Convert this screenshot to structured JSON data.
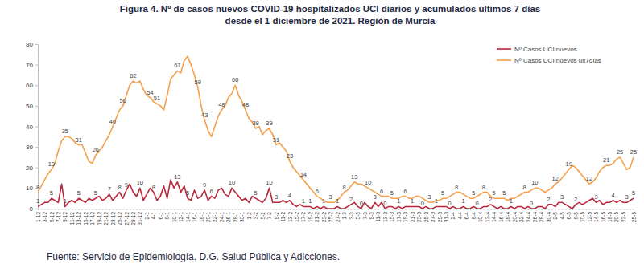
{
  "chart_data": {
    "type": "line",
    "title": [
      "Figura 4. Nº de casos nuevos COVID-19 hospitalizados UCI diarios y acumulados últimos 7 días",
      "desde el 1 diciembre de 2021. Región de Murcia"
    ],
    "source": "Fuente: Servicio de Epidemiología. D.G. Salud Pública y Adicciones.",
    "categories": [
      "1-12",
      null,
      "3-12",
      null,
      "5-12",
      null,
      "7-12",
      null,
      "9-12",
      null,
      "11-12",
      null,
      "13-12",
      null,
      "15-12",
      null,
      "17-12",
      null,
      "19-12",
      null,
      "21-12",
      null,
      "23-12",
      null,
      "25-12",
      null,
      "27-12",
      null,
      "29-12",
      null,
      "31-12",
      null,
      "2-1",
      null,
      "4-1",
      null,
      "6-1",
      null,
      "8-1",
      null,
      "10-1",
      null,
      "12-1",
      null,
      "14-1",
      null,
      "16-1",
      null,
      "18-1",
      null,
      "20-1",
      null,
      "22-1",
      null,
      "24-1",
      null,
      "26-1",
      null,
      "28-1",
      null,
      "30-1",
      null,
      "1-2",
      null,
      "3-2",
      null,
      "5-2",
      null,
      "7-2",
      null,
      "9-2",
      null,
      "11-2",
      null,
      "13-2",
      null,
      "15-2",
      null,
      "17-2",
      null,
      "19-2",
      null,
      "21-2",
      null,
      "23-2",
      null,
      "25-2",
      null,
      "27-2",
      null,
      "1-3",
      null,
      "3-3",
      null,
      "5-3",
      null,
      "7-3",
      null,
      "9-3",
      null,
      "11-3",
      null,
      "13-3",
      null,
      "15-3",
      null,
      "17-3",
      null,
      "19-3",
      null,
      "21-3",
      null,
      "23-3",
      null,
      "25-3",
      null,
      "27-3",
      null,
      "29-3",
      null,
      "31-3",
      null,
      "2-4",
      null,
      "4-4",
      null,
      "6-4",
      null,
      "8-4",
      null,
      "10-4",
      null,
      "12-4",
      null,
      "14-4",
      null,
      "16-4",
      null,
      "18-4",
      null,
      "20-4",
      null,
      "22-4",
      null,
      "24-4",
      null,
      "26-4",
      null,
      "28-4",
      null,
      "30-4",
      null,
      "2-5",
      null,
      "4-5",
      null,
      "6-5",
      null,
      "8-5",
      null,
      "10-5",
      null,
      "12-5",
      null,
      "14-5",
      null,
      "16-5",
      null,
      "18-5",
      null,
      "20-5",
      null,
      "22-5",
      null,
      null,
      "25-5"
    ],
    "series": [
      {
        "name": "Nº Casos UCI nuevos",
        "color": "#b9273a",
        "values": [
          1,
          2,
          3,
          3,
          5,
          4,
          3,
          12,
          1,
          3,
          4,
          3,
          5,
          4,
          3,
          5,
          4,
          5,
          6,
          4,
          5,
          7,
          4,
          6,
          8,
          5,
          9,
          12,
          8,
          6,
          10,
          4,
          7,
          10,
          8,
          4,
          6,
          11,
          5,
          14,
          10,
          13,
          8,
          11,
          5,
          4,
          9,
          5,
          6,
          9,
          4,
          6,
          5,
          9,
          10,
          7,
          6,
          10,
          8,
          6,
          4,
          5,
          3,
          6,
          5,
          4,
          3,
          5,
          10,
          3,
          3,
          3,
          4,
          3,
          4,
          2,
          1,
          2,
          1,
          1,
          1,
          0,
          1,
          0,
          1,
          0,
          0,
          0,
          1,
          0,
          0,
          1,
          2,
          3,
          1,
          0,
          3,
          1,
          0,
          3,
          1,
          3,
          0,
          1,
          1,
          0,
          1,
          0,
          1,
          1,
          1,
          1,
          1,
          0,
          1,
          0,
          0,
          1,
          1,
          1,
          1,
          0,
          1,
          0,
          0,
          1,
          0,
          0,
          1,
          0,
          0,
          1,
          1,
          2,
          1,
          0,
          1,
          0,
          0,
          1,
          0,
          1,
          1,
          0,
          1,
          0,
          0,
          1,
          1,
          0,
          2,
          2,
          1,
          3,
          3,
          2,
          1,
          0,
          2,
          3,
          2,
          3,
          4,
          5,
          3,
          4,
          2,
          3,
          3,
          4,
          3,
          4,
          3,
          3,
          4,
          5
        ],
        "value_labels": [
          "1",
          null,
          null,
          null,
          "5",
          null,
          null,
          null,
          "1",
          null,
          null,
          null,
          "5",
          null,
          null,
          null,
          null,
          "5",
          null,
          null,
          null,
          "7",
          null,
          null,
          "8",
          null,
          "9",
          null,
          null,
          null,
          "10",
          null,
          null,
          null,
          "8",
          null,
          null,
          null,
          null,
          null,
          null,
          "13",
          null,
          null,
          "5",
          null,
          null,
          null,
          null,
          "9",
          null,
          "6",
          null,
          null,
          null,
          null,
          null,
          "10",
          null,
          null,
          null,
          null,
          null,
          null,
          "5",
          null,
          null,
          null,
          "10",
          null,
          "3",
          null,
          null,
          null,
          "4",
          null,
          null,
          null,
          "1",
          null,
          "1",
          null,
          null,
          null,
          "1",
          null,
          null,
          null,
          "1",
          null,
          null,
          null,
          "2",
          null,
          null,
          "0",
          null,
          null,
          null,
          "3",
          null,
          null,
          "0",
          null,
          null,
          null,
          "1",
          null,
          null,
          null,
          "1",
          null,
          null,
          "0",
          null,
          null,
          null,
          "1",
          null,
          null,
          null,
          "0",
          null,
          null,
          null,
          "1",
          null,
          null,
          null,
          "0",
          null,
          null,
          null,
          "2",
          null,
          null,
          null,
          null,
          null,
          "1",
          null,
          null,
          null,
          null,
          null,
          "0",
          null,
          null,
          null,
          null,
          "2",
          null,
          null,
          null,
          "3",
          null,
          null,
          null,
          "2",
          null,
          null,
          null,
          null,
          null,
          "3",
          null,
          null,
          null,
          null,
          "4",
          null,
          null,
          null,
          "3",
          null,
          "5"
        ]
      },
      {
        "name": "Nº Casos UCI nuevos ult7días",
        "color": "#f5a04a",
        "values": [
          8,
          11,
          14,
          17,
          19,
          22,
          28,
          33,
          35,
          35,
          34,
          32,
          31,
          31,
          27,
          23,
          22,
          26,
          28,
          30,
          33,
          36,
          40,
          44,
          48,
          50,
          55,
          60,
          62,
          61,
          62,
          58,
          55,
          54,
          52,
          51,
          50,
          48,
          55,
          63,
          65,
          67,
          66,
          72,
          74,
          70,
          65,
          59,
          50,
          43,
          38,
          35,
          40,
          45,
          48,
          50,
          54,
          56,
          60,
          55,
          52,
          48,
          44,
          42,
          39,
          40,
          36,
          38,
          39,
          36,
          31,
          32,
          30,
          28,
          23,
          20,
          18,
          16,
          14,
          12,
          10,
          8,
          6,
          5,
          4,
          3,
          3,
          3,
          4,
          6,
          8,
          9,
          11,
          13,
          12,
          12,
          11,
          10,
          9,
          8,
          7,
          6,
          6,
          6,
          5,
          5,
          5,
          6,
          6,
          5,
          5,
          6,
          6,
          5,
          4,
          3,
          3,
          4,
          4,
          5,
          5,
          6,
          7,
          8,
          8,
          7,
          6,
          5,
          5,
          6,
          7,
          8,
          8,
          6,
          5,
          5,
          5,
          5,
          4,
          5,
          5,
          6,
          7,
          8,
          8,
          9,
          10,
          10,
          9,
          8,
          9,
          10,
          12,
          13,
          15,
          17,
          19,
          21,
          20,
          18,
          16,
          14,
          12,
          13,
          15,
          18,
          20,
          21,
          21,
          22,
          24,
          25,
          22,
          19,
          20,
          25
        ],
        "value_labels": [
          "8",
          null,
          null,
          null,
          "19",
          null,
          null,
          null,
          "35",
          null,
          null,
          null,
          "31",
          null,
          null,
          null,
          null,
          "26",
          null,
          null,
          null,
          null,
          "40",
          null,
          null,
          "50",
          null,
          null,
          "62",
          null,
          null,
          null,
          null,
          "54",
          null,
          "51",
          null,
          null,
          null,
          null,
          null,
          "67",
          null,
          null,
          null,
          null,
          null,
          "59",
          null,
          "43",
          null,
          null,
          null,
          null,
          "48",
          null,
          null,
          null,
          "60",
          null,
          null,
          "48",
          null,
          null,
          "39",
          null,
          null,
          null,
          "39",
          null,
          "31",
          null,
          null,
          null,
          "23",
          null,
          null,
          null,
          "14",
          null,
          null,
          null,
          "6",
          null,
          null,
          null,
          "3",
          null,
          null,
          null,
          "8",
          null,
          null,
          "13",
          null,
          null,
          null,
          "10",
          null,
          null,
          null,
          "6",
          null,
          null,
          "5",
          null,
          null,
          null,
          "6",
          null,
          null,
          null,
          null,
          null,
          null,
          "3",
          null,
          null,
          null,
          "5",
          null,
          null,
          null,
          "8",
          null,
          null,
          null,
          null,
          "5",
          null,
          null,
          "8",
          null,
          null,
          "5",
          null,
          null,
          "5",
          null,
          null,
          null,
          null,
          null,
          "8",
          null,
          null,
          "10",
          null,
          null,
          null,
          null,
          null,
          "12",
          null,
          null,
          null,
          "19",
          null,
          null,
          null,
          null,
          null,
          "12",
          null,
          null,
          null,
          null,
          "21",
          null,
          null,
          null,
          "25",
          null,
          null,
          null,
          "25"
        ]
      }
    ],
    "ylim": [
      0,
      80
    ],
    "yticks": [
      0,
      10,
      20,
      30,
      40,
      50,
      60,
      70,
      80
    ],
    "grid": false,
    "legend": "top-right"
  }
}
